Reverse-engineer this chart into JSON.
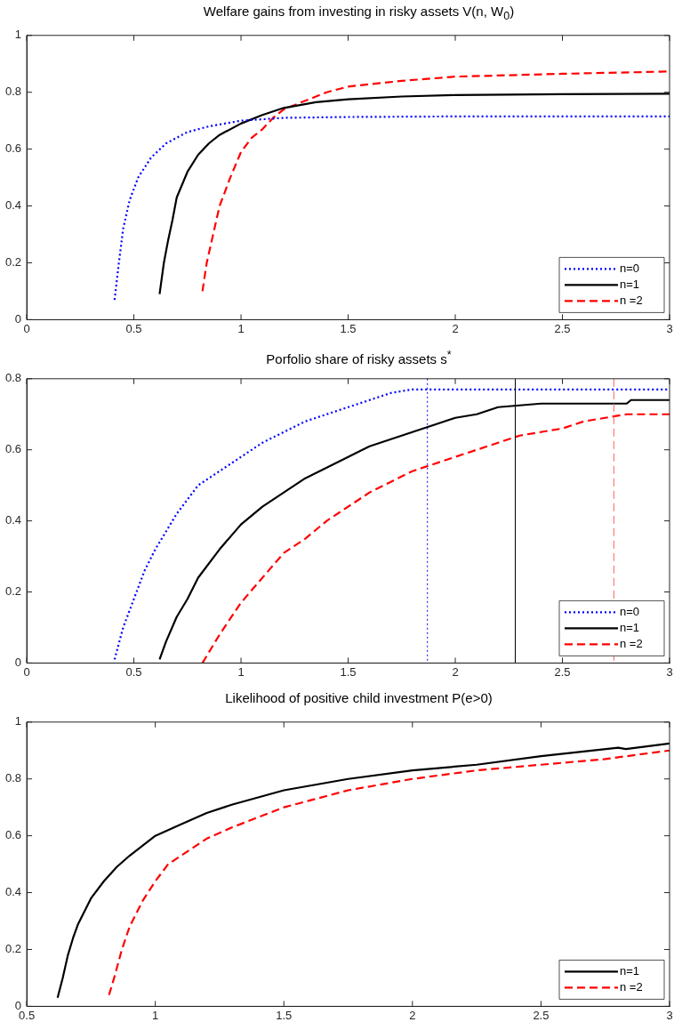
{
  "chart_data": [
    {
      "type": "line",
      "title": "Welfare gains from investing in risky assets V(n, W$_{0}$)",
      "xlim": [
        0,
        3
      ],
      "xticks": [
        0,
        0.5,
        1,
        1.5,
        2,
        2.5,
        3
      ],
      "ylim": [
        0,
        1
      ],
      "yticks": [
        0,
        0.2,
        0.4,
        0.6,
        0.8,
        1
      ],
      "grid": false,
      "legend": "bottom right",
      "marker": "none",
      "series": [
        {
          "name": "n=0",
          "color": "#0000ff",
          "line_style": "dotted",
          "x": [
            0.41,
            0.43,
            0.45,
            0.48,
            0.52,
            0.58,
            0.65,
            0.75,
            0.85,
            1.0,
            1.2,
            1.5,
            2,
            3
          ],
          "values": [
            0.07,
            0.2,
            0.32,
            0.42,
            0.5,
            0.57,
            0.62,
            0.66,
            0.68,
            0.7,
            0.71,
            0.713,
            0.715,
            0.715
          ]
        },
        {
          "name": "n=1",
          "color": "#000000",
          "line_style": "solid",
          "x": [
            0.62,
            0.64,
            0.66,
            0.68,
            0.7,
            0.75,
            0.8,
            0.85,
            0.9,
            1.0,
            1.1,
            1.2,
            1.35,
            1.5,
            1.75,
            2,
            2.5,
            3
          ],
          "values": [
            0.09,
            0.2,
            0.28,
            0.35,
            0.43,
            0.52,
            0.58,
            0.62,
            0.65,
            0.69,
            0.72,
            0.745,
            0.765,
            0.775,
            0.785,
            0.79,
            0.793,
            0.795
          ]
        },
        {
          "name": "n =2",
          "color": "#ff0000",
          "line_style": "dashed",
          "x": [
            0.82,
            0.84,
            0.87,
            0.9,
            0.95,
            1.0,
            1.05,
            1.1,
            1.15,
            1.2,
            1.3,
            1.4,
            1.5,
            1.75,
            2,
            2.5,
            3
          ],
          "values": [
            0.1,
            0.2,
            0.3,
            0.4,
            0.5,
            0.59,
            0.64,
            0.67,
            0.71,
            0.74,
            0.77,
            0.8,
            0.82,
            0.84,
            0.855,
            0.865,
            0.873
          ]
        }
      ]
    },
    {
      "type": "line",
      "title": "Porfolio share of risky assets s$^{*}$",
      "xlim": [
        0,
        3
      ],
      "xticks": [
        0,
        0.5,
        1,
        1.5,
        2,
        2.5,
        3
      ],
      "ylim": [
        0,
        0.8
      ],
      "yticks": [
        0,
        0.2,
        0.4,
        0.6,
        0.8
      ],
      "grid": false,
      "legend": "bottom right",
      "marker": "none",
      "series": [
        {
          "name": "n=0",
          "color": "#0000ff",
          "line_style": "dotted",
          "x": [
            0.41,
            0.45,
            0.5,
            0.55,
            0.6,
            0.7,
            0.8,
            0.9,
            1,
            1.1,
            1.2,
            1.3,
            1.4,
            1.5,
            1.6,
            1.7,
            1.8,
            3
          ],
          "values": [
            0.01,
            0.1,
            0.18,
            0.26,
            0.32,
            0.42,
            0.5,
            0.54,
            0.58,
            0.62,
            0.65,
            0.68,
            0.7,
            0.72,
            0.74,
            0.76,
            0.77,
            0.77
          ]
        },
        {
          "name": "n=1",
          "color": "#000000",
          "line_style": "solid",
          "x": [
            0.62,
            0.65,
            0.7,
            0.75,
            0.8,
            0.9,
            1,
            1.1,
            1.2,
            1.3,
            1.4,
            1.5,
            1.6,
            1.7,
            1.8,
            1.9,
            2,
            2.1,
            2.2,
            2.4,
            2.8,
            2.82,
            3
          ],
          "values": [
            0.01,
            0.06,
            0.13,
            0.18,
            0.24,
            0.32,
            0.39,
            0.44,
            0.48,
            0.52,
            0.55,
            0.58,
            0.61,
            0.63,
            0.65,
            0.67,
            0.69,
            0.7,
            0.72,
            0.73,
            0.73,
            0.74,
            0.74
          ]
        },
        {
          "name": "n =2",
          "color": "#ff0000",
          "line_style": "dashed",
          "x": [
            0.82,
            0.9,
            1,
            1.1,
            1.2,
            1.3,
            1.4,
            1.5,
            1.6,
            1.7,
            1.8,
            1.9,
            2,
            2.1,
            2.2,
            2.3,
            2.5,
            2.6,
            2.7,
            2.8,
            3
          ],
          "values": [
            0,
            0.08,
            0.17,
            0.24,
            0.31,
            0.35,
            0.4,
            0.44,
            0.48,
            0.51,
            0.54,
            0.56,
            0.58,
            0.6,
            0.62,
            0.64,
            0.66,
            0.68,
            0.69,
            0.7,
            0.7
          ]
        }
      ],
      "ref_lines": [
        {
          "axis": "x",
          "value": 1.87,
          "color": "#0000ff",
          "line_style": "dotted"
        },
        {
          "axis": "x",
          "value": 2.28,
          "color": "#000000",
          "line_style": "solid"
        },
        {
          "axis": "x",
          "value": 2.74,
          "color": "#ff6060",
          "line_style": "dashed"
        }
      ]
    },
    {
      "type": "line",
      "title": "Likelihood of positive child investment P(e>0)",
      "xlim": [
        0.5,
        3
      ],
      "xticks": [
        0.5,
        1,
        1.5,
        2,
        2.5,
        3
      ],
      "ylim": [
        0,
        1
      ],
      "yticks": [
        0,
        0.2,
        0.4,
        0.6,
        0.8,
        1
      ],
      "grid": false,
      "legend": "bottom right",
      "marker": "none",
      "series": [
        {
          "name": "n=1",
          "color": "#000000",
          "line_style": "solid",
          "x": [
            0.62,
            0.64,
            0.66,
            0.68,
            0.7,
            0.75,
            0.8,
            0.85,
            0.9,
            1,
            1.1,
            1.2,
            1.3,
            1.5,
            1.75,
            2,
            2.25,
            2.5,
            2.8,
            2.83,
            3
          ],
          "values": [
            0.03,
            0.1,
            0.18,
            0.24,
            0.29,
            0.38,
            0.44,
            0.49,
            0.53,
            0.6,
            0.64,
            0.68,
            0.71,
            0.76,
            0.8,
            0.83,
            0.85,
            0.88,
            0.91,
            0.905,
            0.925
          ]
        },
        {
          "name": "n =2",
          "color": "#ff0000",
          "line_style": "dashed",
          "x": [
            0.82,
            0.84,
            0.87,
            0.9,
            0.95,
            1.0,
            1.05,
            1.1,
            1.2,
            1.3,
            1.5,
            1.75,
            2,
            2.25,
            2.5,
            2.75,
            3
          ],
          "values": [
            0.04,
            0.1,
            0.2,
            0.28,
            0.37,
            0.44,
            0.5,
            0.53,
            0.59,
            0.63,
            0.7,
            0.76,
            0.8,
            0.83,
            0.85,
            0.87,
            0.9
          ]
        }
      ]
    }
  ]
}
